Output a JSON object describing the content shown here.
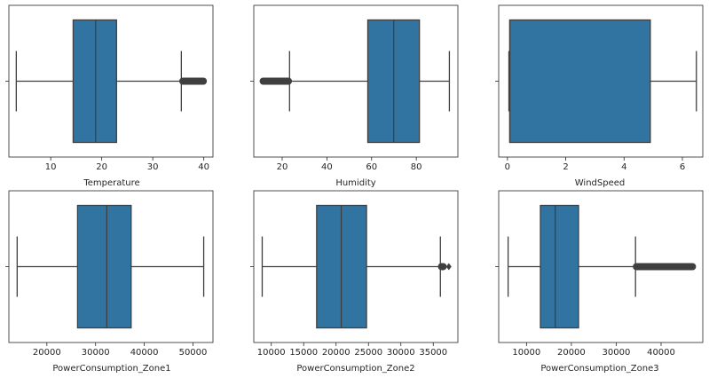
{
  "colors": {
    "box_fill": "#3274a1",
    "line": "#3f3f3f",
    "spine": "#262626",
    "text": "#262626"
  },
  "chart_data": [
    {
      "type": "box",
      "xlabel": "Temperature",
      "xlim": [
        1.8,
        41.8
      ],
      "ticks": [
        10,
        20,
        30,
        40
      ],
      "tick_labels": [
        "10",
        "20",
        "30",
        "40"
      ],
      "whisker_low": 3.25,
      "q1": 14.4,
      "median": 18.8,
      "q3": 22.9,
      "whisker_high": 35.6,
      "outlier_range": [
        35.8,
        40.0
      ],
      "outliers": []
    },
    {
      "type": "box",
      "xlabel": "Humidity",
      "xlim": [
        7.3,
        98.6
      ],
      "ticks": [
        20,
        40,
        60,
        80
      ],
      "tick_labels": [
        "20",
        "40",
        "60",
        "80"
      ],
      "whisker_low": 23.3,
      "q1": 58.3,
      "median": 69.9,
      "q3": 81.4,
      "whisker_high": 94.8,
      "outlier_range": [
        11.3,
        23.0
      ],
      "outliers": []
    },
    {
      "type": "box",
      "xlabel": "WindSpeed",
      "xlim": [
        -0.3,
        6.7
      ],
      "ticks": [
        0,
        2,
        4,
        6
      ],
      "tick_labels": [
        "0",
        "2",
        "4",
        "6"
      ],
      "whisker_low": 0.05,
      "q1": 0.08,
      "median": 0.08,
      "q3": 4.9,
      "whisker_high": 6.48,
      "outlier_range": null,
      "outliers": []
    },
    {
      "type": "box",
      "xlabel": "PowerConsumption_Zone1",
      "xlim": [
        12200,
        54100
      ],
      "ticks": [
        20000,
        30000,
        40000,
        50000
      ],
      "tick_labels": [
        "20000",
        "30000",
        "40000",
        "50000"
      ],
      "whisker_low": 13900,
      "q1": 26300,
      "median": 32300,
      "q3": 37300,
      "whisker_high": 52200,
      "outlier_range": null,
      "outliers": []
    },
    {
      "type": "box",
      "xlabel": "PowerConsumption_Zone2",
      "xlim": [
        7300,
        38800
      ],
      "ticks": [
        10000,
        15000,
        20000,
        25000,
        30000,
        35000
      ],
      "tick_labels": [
        "10000",
        "15000",
        "20000",
        "25000",
        "30000",
        "35000"
      ],
      "whisker_low": 8600,
      "q1": 17000,
      "median": 20800,
      "q3": 24700,
      "whisker_high": 36100,
      "outlier_range": [
        36200,
        36600
      ],
      "outliers": [
        37400
      ]
    },
    {
      "type": "box",
      "xlabel": "PowerConsumption_Zone3",
      "xlim": [
        3800,
        49300
      ],
      "ticks": [
        10000,
        20000,
        30000,
        40000
      ],
      "tick_labels": [
        "10000",
        "20000",
        "30000",
        "40000"
      ],
      "whisker_low": 5900,
      "q1": 13100,
      "median": 16400,
      "q3": 21600,
      "whisker_high": 34300,
      "outlier_range": [
        34400,
        47100
      ],
      "outliers": []
    }
  ]
}
